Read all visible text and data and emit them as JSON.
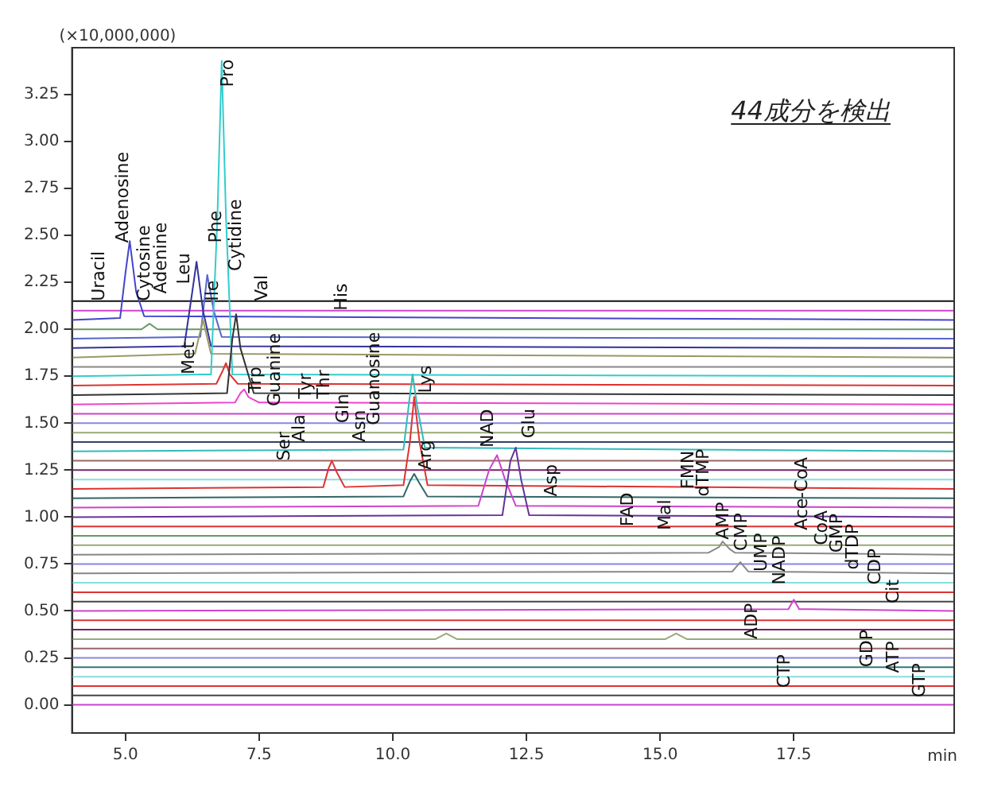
{
  "chart_data": {
    "type": "line",
    "xlabel": "min",
    "ylabel": "(×10,000,000)",
    "legend": false,
    "marker": "none",
    "line_style": "solid",
    "xlim": [
      4,
      20.5
    ],
    "ylim": [
      -0.15,
      3.5
    ],
    "xticks": [
      {
        "value": 5,
        "label": "5.0"
      },
      {
        "value": 7.5,
        "label": "7.5"
      },
      {
        "value": 10,
        "label": "10.0"
      },
      {
        "value": 12.5,
        "label": "12.5"
      },
      {
        "value": 15,
        "label": "15.0"
      },
      {
        "value": 17.5,
        "label": "17.5"
      }
    ],
    "yticks": [
      {
        "value": 0,
        "label": "0.00"
      },
      {
        "value": 0.25,
        "label": "0.25"
      },
      {
        "value": 0.5,
        "label": "0.50"
      },
      {
        "value": 0.75,
        "label": "0.75"
      },
      {
        "value": 1,
        "label": "1.00"
      },
      {
        "value": 1.25,
        "label": "1.25"
      },
      {
        "value": 1.5,
        "label": "1.50"
      },
      {
        "value": 1.75,
        "label": "1.75"
      },
      {
        "value": 2,
        "label": "2.00"
      },
      {
        "value": 2.25,
        "label": "2.25"
      },
      {
        "value": 2.5,
        "label": "2.50"
      },
      {
        "value": 2.75,
        "label": "2.75"
      },
      {
        "value": 3,
        "label": "3.00"
      },
      {
        "value": 3.25,
        "label": "3.25"
      }
    ],
    "series": [
      {
        "color": "#cc44cc",
        "x": [
          4,
          20.5
        ],
        "values": [
          0,
          0
        ]
      },
      {
        "color": "#444444",
        "x": [
          4,
          20.5
        ],
        "values": [
          0.05,
          0.05
        ]
      },
      {
        "color": "#dd3333",
        "x": [
          4,
          20.5
        ],
        "values": [
          0.1,
          0.1
        ]
      },
      {
        "color": "#88dddd",
        "x": [
          4,
          20.5
        ],
        "values": [
          0.15,
          0.15
        ]
      },
      {
        "color": "#337777",
        "x": [
          4,
          20.5
        ],
        "values": [
          0.2,
          0.2
        ]
      },
      {
        "color": "#8888dd",
        "x": [
          4,
          20.5
        ],
        "values": [
          0.25,
          0.25
        ]
      },
      {
        "color": "#996666",
        "x": [
          4,
          20.5
        ],
        "values": [
          0.3,
          0.3
        ]
      },
      {
        "color": "#99aa77",
        "x": [
          4,
          10.8,
          11,
          11.2,
          15.1,
          15.3,
          15.5,
          20.5
        ],
        "values": [
          0.35,
          0.35,
          0.38,
          0.35,
          0.35,
          0.38,
          0.35,
          0.35
        ]
      },
      {
        "color": "#772266",
        "x": [
          4,
          20.5
        ],
        "values": [
          0.4,
          0.4
        ]
      },
      {
        "color": "#dd3333",
        "x": [
          4,
          20.5
        ],
        "values": [
          0.45,
          0.45
        ]
      },
      {
        "color": "#cc44cc",
        "x": [
          4,
          17.4,
          17.5,
          17.6,
          20.5
        ],
        "values": [
          0.5,
          0.51,
          0.56,
          0.51,
          0.5
        ]
      },
      {
        "color": "#444444",
        "x": [
          4,
          20.5
        ],
        "values": [
          0.55,
          0.55
        ]
      },
      {
        "color": "#dd3333",
        "x": [
          4,
          20.5
        ],
        "values": [
          0.6,
          0.6
        ]
      },
      {
        "color": "#88dddd",
        "x": [
          4,
          20.5
        ],
        "values": [
          0.65,
          0.65
        ]
      },
      {
        "color": "#888888",
        "x": [
          4,
          16.35,
          16.5,
          16.65,
          20.5
        ],
        "values": [
          0.7,
          0.71,
          0.76,
          0.71,
          0.7
        ]
      },
      {
        "color": "#8888dd",
        "x": [
          4,
          20.5
        ],
        "values": [
          0.75,
          0.75
        ]
      },
      {
        "color": "#888888",
        "x": [
          4,
          15.9,
          16.1,
          16.17,
          16.3,
          16.4,
          20.5
        ],
        "values": [
          0.8,
          0.81,
          0.84,
          0.87,
          0.83,
          0.81,
          0.8
        ]
      },
      {
        "color": "#99aa77",
        "x": [
          4,
          20.5
        ],
        "values": [
          0.85,
          0.85
        ]
      },
      {
        "color": "#669966",
        "x": [
          4,
          20.5
        ],
        "values": [
          0.9,
          0.9
        ]
      },
      {
        "color": "#dd3333",
        "x": [
          4,
          20.5
        ],
        "values": [
          0.95,
          0.95
        ]
      },
      {
        "color": "#663399",
        "x": [
          4,
          12.05,
          12.2,
          12.3,
          12.4,
          12.55,
          20.5
        ],
        "values": [
          1,
          1.01,
          1.3,
          1.37,
          1.2,
          1.01,
          1
        ]
      },
      {
        "color": "#cc44cc",
        "x": [
          4,
          11.6,
          11.8,
          11.95,
          12.1,
          12.3,
          20.5
        ],
        "values": [
          1.05,
          1.06,
          1.25,
          1.33,
          1.2,
          1.06,
          1.05
        ]
      },
      {
        "color": "#336666",
        "x": [
          4,
          10.2,
          10.32,
          10.4,
          10.5,
          10.65,
          20.5
        ],
        "values": [
          1.1,
          1.11,
          1.19,
          1.23,
          1.18,
          1.11,
          1.1
        ]
      },
      {
        "color": "#dd3333",
        "x": [
          4,
          8.7,
          8.8,
          8.86,
          8.95,
          9.1,
          10.2,
          10.32,
          10.4,
          10.5,
          10.65,
          20.5
        ],
        "values": [
          1.15,
          1.16,
          1.26,
          1.3,
          1.24,
          1.16,
          1.17,
          1.4,
          1.64,
          1.4,
          1.17,
          1.15
        ]
      },
      {
        "color": "#88dddd",
        "x": [
          4,
          20.5
        ],
        "values": [
          1.2,
          1.2
        ]
      },
      {
        "color": "#772266",
        "x": [
          4,
          20.5
        ],
        "values": [
          1.25,
          1.25
        ]
      },
      {
        "color": "#996666",
        "x": [
          4,
          20.5
        ],
        "values": [
          1.3,
          1.3
        ]
      },
      {
        "color": "#33bbbb",
        "x": [
          4,
          10.2,
          10.3,
          10.37,
          10.45,
          10.6,
          20.5
        ],
        "values": [
          1.35,
          1.36,
          1.6,
          1.76,
          1.6,
          1.37,
          1.35
        ]
      },
      {
        "color": "#334466",
        "x": [
          4,
          20.5
        ],
        "values": [
          1.4,
          1.4
        ]
      },
      {
        "color": "#99aa77",
        "x": [
          4,
          20.5
        ],
        "values": [
          1.45,
          1.45
        ]
      },
      {
        "color": "#8888dd",
        "x": [
          4,
          20.5
        ],
        "values": [
          1.5,
          1.5
        ]
      },
      {
        "color": "#cc44cc",
        "x": [
          4,
          20.5
        ],
        "values": [
          1.55,
          1.55
        ]
      },
      {
        "color": "#ee44cc",
        "x": [
          4,
          7.05,
          7.15,
          7.22,
          7.3,
          7.5,
          20.5
        ],
        "values": [
          1.6,
          1.61,
          1.66,
          1.68,
          1.64,
          1.61,
          1.6
        ]
      },
      {
        "color": "#333333",
        "x": [
          4,
          6.9,
          7,
          7.07,
          7.15,
          7.4,
          20.5
        ],
        "values": [
          1.65,
          1.66,
          1.95,
          2.08,
          1.9,
          1.66,
          1.65
        ]
      },
      {
        "color": "#dd3333",
        "x": [
          4,
          6.7,
          6.82,
          6.88,
          6.95,
          7.1,
          20.5
        ],
        "values": [
          1.7,
          1.71,
          1.78,
          1.82,
          1.76,
          1.71,
          1.7
        ]
      },
      {
        "color": "#33cccc",
        "x": [
          4,
          6.6,
          6.72,
          6.8,
          6.88,
          7,
          20.5
        ],
        "values": [
          1.75,
          1.76,
          2.6,
          3.43,
          2.6,
          1.76,
          1.75
        ]
      },
      {
        "color": "#888888",
        "x": [
          4,
          20.5
        ],
        "values": [
          1.8,
          1.8
        ]
      },
      {
        "color": "#999966",
        "x": [
          4,
          6.3,
          6.45,
          6.6,
          20.5
        ],
        "values": [
          1.85,
          1.87,
          2.05,
          1.87,
          1.85
        ]
      },
      {
        "color": "#333399",
        "x": [
          4,
          6.1,
          6.25,
          6.33,
          6.45,
          6.6,
          20.5
        ],
        "values": [
          1.9,
          1.91,
          2.2,
          2.36,
          2.1,
          1.91,
          1.9
        ]
      },
      {
        "color": "#5566cc",
        "x": [
          4,
          6.4,
          6.53,
          6.65,
          6.8,
          20.5
        ],
        "values": [
          1.95,
          1.96,
          2.29,
          2.1,
          1.96,
          1.95
        ]
      },
      {
        "color": "#669966",
        "x": [
          4,
          5.3,
          5.45,
          5.6,
          20.5
        ],
        "values": [
          2,
          2,
          2.03,
          2,
          2
        ]
      },
      {
        "color": "#4444cc",
        "x": [
          4,
          4.9,
          5,
          5.08,
          5.2,
          5.35,
          20.5
        ],
        "values": [
          2.05,
          2.06,
          2.3,
          2.47,
          2.2,
          2.07,
          2.05
        ]
      },
      {
        "color": "#cc44cc",
        "x": [
          4,
          20.5
        ],
        "values": [
          2.1,
          2.1
        ]
      },
      {
        "color": "#111111",
        "x": [
          4,
          20.5
        ],
        "values": [
          2.15,
          2.15
        ]
      }
    ],
    "annotations": [
      "44成分を検出",
      {
        "text": "Uracil",
        "x": 4.52,
        "y": 2.15
      },
      {
        "text": "Adenosine",
        "x": 4.97,
        "y": 2.46
      },
      {
        "text": "Cytosine",
        "x": 5.37,
        "y": 2.15
      },
      {
        "text": "Adenine",
        "x": 5.68,
        "y": 2.19
      },
      {
        "text": "Leu",
        "x": 6.11,
        "y": 2.24
      },
      {
        "text": "Phe",
        "x": 6.7,
        "y": 2.46
      },
      {
        "text": "Ile",
        "x": 6.65,
        "y": 2.15
      },
      {
        "text": "Cytidine",
        "x": 7.07,
        "y": 2.31
      },
      {
        "text": "Val",
        "x": 7.56,
        "y": 2.15
      },
      {
        "text": "Pro",
        "x": 6.93,
        "y": 3.29
      },
      {
        "text": "Met",
        "x": 6.19,
        "y": 1.76
      },
      {
        "text": "Trp",
        "x": 7.44,
        "y": 1.66
      },
      {
        "text": "Guanine",
        "x": 7.81,
        "y": 1.59
      },
      {
        "text": "Ser",
        "x": 7.98,
        "y": 1.3
      },
      {
        "text": "Ala",
        "x": 8.27,
        "y": 1.4
      },
      {
        "text": "Tyr",
        "x": 8.38,
        "y": 1.63
      },
      {
        "text": "Thr",
        "x": 8.72,
        "y": 1.63
      },
      {
        "text": "His",
        "x": 9.06,
        "y": 2.1
      },
      {
        "text": "Gln",
        "x": 9.08,
        "y": 1.5
      },
      {
        "text": "Asn",
        "x": 9.4,
        "y": 1.4
      },
      {
        "text": "Guanosine",
        "x": 9.66,
        "y": 1.49
      },
      {
        "text": "Lys",
        "x": 10.63,
        "y": 1.66
      },
      {
        "text": "Arg",
        "x": 10.63,
        "y": 1.25
      },
      {
        "text": "NAD",
        "x": 11.79,
        "y": 1.37
      },
      {
        "text": "Glu",
        "x": 12.56,
        "y": 1.42
      },
      {
        "text": "Asp",
        "x": 12.98,
        "y": 1.11
      },
      {
        "text": "FAD",
        "x": 14.4,
        "y": 0.95
      },
      {
        "text": "Mal",
        "x": 15.11,
        "y": 0.93
      },
      {
        "text": "FMN",
        "x": 15.54,
        "y": 1.15
      },
      {
        "text": "dTMP",
        "x": 15.82,
        "y": 1.11
      },
      {
        "text": "AMP",
        "x": 16.19,
        "y": 0.88
      },
      {
        "text": "CMP",
        "x": 16.53,
        "y": 0.82
      },
      {
        "text": "UMP",
        "x": 16.9,
        "y": 0.71
      },
      {
        "text": "NADP",
        "x": 17.24,
        "y": 0.64
      },
      {
        "text": "Ace-CoA",
        "x": 17.67,
        "y": 0.93
      },
      {
        "text": "CoA",
        "x": 18.04,
        "y": 0.85
      },
      {
        "text": "GMP",
        "x": 18.32,
        "y": 0.81
      },
      {
        "text": "dTDP",
        "x": 18.61,
        "y": 0.72
      },
      {
        "text": "CDP",
        "x": 19.03,
        "y": 0.64
      },
      {
        "text": "Cit",
        "x": 19.38,
        "y": 0.54
      },
      {
        "text": "ADP",
        "x": 16.73,
        "y": 0.35
      },
      {
        "text": "CTP",
        "x": 17.33,
        "y": 0.09
      },
      {
        "text": "GDP",
        "x": 18.89,
        "y": 0.2
      },
      {
        "text": "ATP",
        "x": 19.38,
        "y": 0.17
      },
      {
        "text": "GTP",
        "x": 19.86,
        "y": 0.04
      }
    ]
  }
}
